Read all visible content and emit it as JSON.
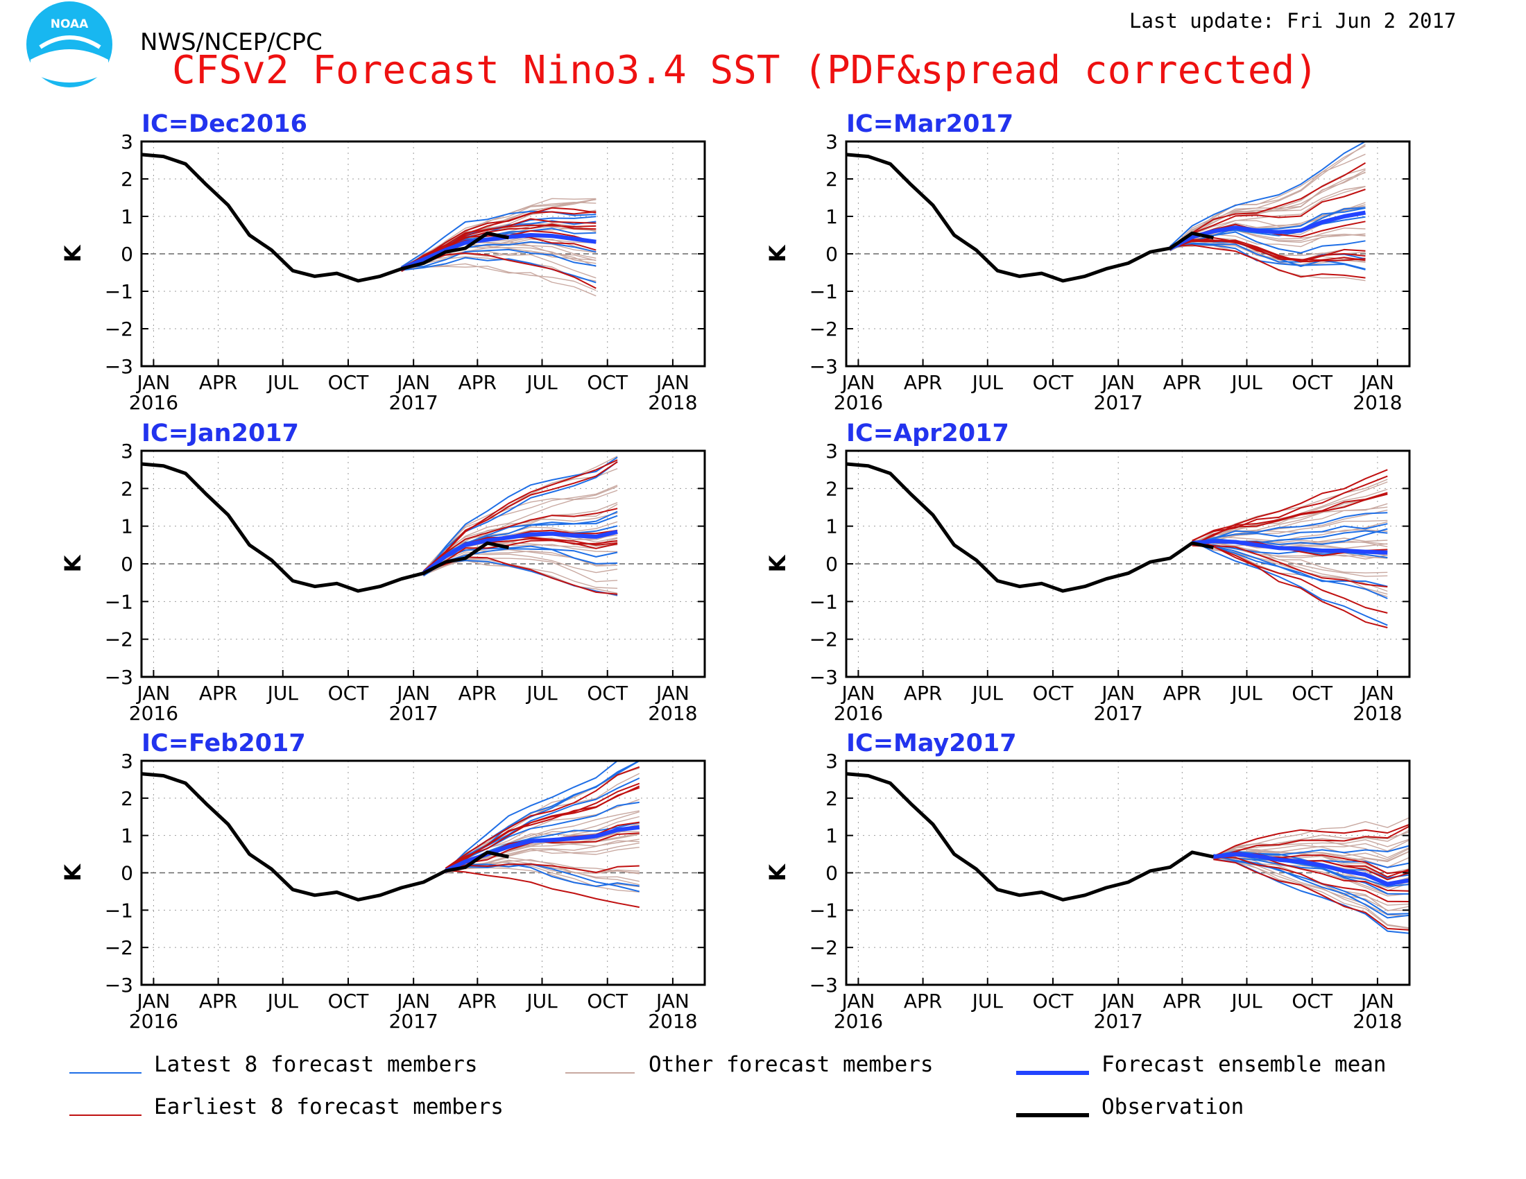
{
  "header": {
    "agency": "NWS/NCEP/CPC",
    "title": "CFSv2 Forecast Nino3.4 SST (PDF&spread corrected)",
    "last_update": "Last update: Fri Jun  2 2017",
    "logo_text": "NOAA"
  },
  "legend": {
    "latest": "Latest 8 forecast members",
    "other": "Other forecast members",
    "mean": "Forecast ensemble mean",
    "earliest": "Earliest 8 forecast members",
    "observation": "Observation"
  },
  "colors": {
    "title": "#ee1111",
    "panel_title": "#2233ee",
    "latest": "#1e6ee6",
    "other": "#c8a8a0",
    "mean": "#2244ff",
    "earliest": "#c01010",
    "observation": "#000000",
    "zero_line": "#666666"
  },
  "chart_data": {
    "type": "line",
    "ylabel": "K",
    "ylim": [
      -3,
      3
    ],
    "yticks": [
      "3",
      "2",
      "1",
      "0",
      "−1",
      "−2",
      "−3"
    ],
    "xlim": [
      "2015-12-15",
      "2018-02-15"
    ],
    "xticks": [
      {
        "date": "2016-01-01",
        "label": "JAN",
        "year": "2016"
      },
      {
        "date": "2016-04-01",
        "label": "APR",
        "year": ""
      },
      {
        "date": "2016-07-01",
        "label": "JUL",
        "year": ""
      },
      {
        "date": "2016-10-01",
        "label": "OCT",
        "year": ""
      },
      {
        "date": "2017-01-01",
        "label": "JAN",
        "year": "2017"
      },
      {
        "date": "2017-04-01",
        "label": "APR",
        "year": ""
      },
      {
        "date": "2017-07-01",
        "label": "JUL",
        "year": ""
      },
      {
        "date": "2017-10-01",
        "label": "OCT",
        "year": ""
      },
      {
        "date": "2018-01-01",
        "label": "JAN",
        "year": "2018"
      }
    ],
    "grid": "dotted",
    "legend_placement": "bottom",
    "observation": {
      "dates": [
        "2015-12",
        "2016-01",
        "2016-02",
        "2016-03",
        "2016-04",
        "2016-05",
        "2016-06",
        "2016-07",
        "2016-08",
        "2016-09",
        "2016-10",
        "2016-11",
        "2016-12",
        "2017-01",
        "2017-02",
        "2017-03",
        "2017-04",
        "2017-05"
      ],
      "values": [
        2.65,
        2.6,
        2.4,
        1.85,
        1.3,
        0.5,
        0.1,
        -0.45,
        -0.6,
        -0.52,
        -0.72,
        -0.6,
        -0.4,
        -0.25,
        0.05,
        0.15,
        0.55,
        0.43
      ]
    },
    "panels": [
      {
        "title": "IC=Dec2016",
        "obs_end": "2017-05",
        "fc_start": "2016-12",
        "fc_start_value": -0.4,
        "fc_end": "2017-09",
        "mean": [
          -0.4,
          -0.15,
          0.1,
          0.3,
          0.38,
          0.45,
          0.5,
          0.48,
          0.4,
          0.32
        ],
        "spread": 1.1
      },
      {
        "title": "IC=Mar2017",
        "obs_end": "2017-05",
        "fc_start": "2017-03",
        "fc_start_value": 0.15,
        "fc_end": "2017-12",
        "mean": [
          0.15,
          0.45,
          0.6,
          0.7,
          0.62,
          0.58,
          0.62,
          0.85,
          1.0,
          1.1
        ],
        "spread": 1.6
      },
      {
        "title": "IC=Jan2017",
        "obs_end": "2017-05",
        "fc_start": "2017-01",
        "fc_start_value": -0.25,
        "fc_end": "2017-10",
        "mean": [
          -0.25,
          0.2,
          0.5,
          0.62,
          0.7,
          0.78,
          0.8,
          0.75,
          0.72,
          0.85
        ],
        "spread": 1.7
      },
      {
        "title": "IC=Apr2017",
        "obs_end": "2017-05",
        "fc_start": "2017-04",
        "fc_start_value": 0.55,
        "fc_end": "2018-01",
        "mean": [
          0.55,
          0.6,
          0.58,
          0.5,
          0.42,
          0.4,
          0.35,
          0.35,
          0.32,
          0.3
        ],
        "spread": 1.8
      },
      {
        "title": "IC=Feb2017",
        "obs_end": "2017-05",
        "fc_start": "2017-02",
        "fc_start_value": 0.05,
        "fc_end": "2017-11",
        "mean": [
          0.05,
          0.3,
          0.5,
          0.7,
          0.85,
          0.88,
          0.92,
          0.98,
          1.15,
          1.22
        ],
        "spread": 1.8
      },
      {
        "title": "IC=May2017",
        "obs_end": "2017-05",
        "fc_start": "2017-05",
        "fc_start_value": 0.43,
        "fc_end": "2018-02",
        "mean": [
          0.43,
          0.5,
          0.45,
          0.35,
          0.3,
          0.2,
          0.05,
          -0.05,
          -0.3,
          -0.2
        ],
        "spread": 1.4
      }
    ]
  }
}
